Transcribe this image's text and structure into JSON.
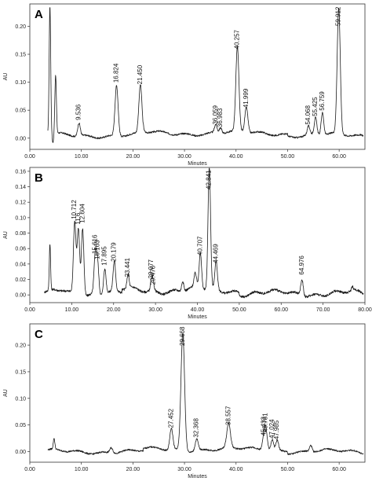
{
  "chart_data": [
    {
      "type": "line",
      "panel_label": "A",
      "xlabel": "Minutes",
      "ylabel": "AU",
      "xlim": [
        0,
        65
      ],
      "ylim": [
        -0.02,
        0.24
      ],
      "xticks": [
        "0.00",
        "10.00",
        "20.00",
        "30.00",
        "40.00",
        "50.00",
        "60.00"
      ],
      "xtick_values": [
        0,
        10,
        20,
        30,
        40,
        50,
        60
      ],
      "yticks": [
        "0.00",
        "0.05",
        "0.10",
        "0.15",
        "0.20"
      ],
      "ytick_values": [
        0,
        0.05,
        0.1,
        0.15,
        0.2
      ],
      "baseline": 0.005,
      "peaks": [
        {
          "x": 3.9,
          "y": 0.235,
          "w": 0.15
        },
        {
          "x": 4.5,
          "y": -0.01,
          "w": 0.15
        },
        {
          "x": 5.0,
          "y": 0.11,
          "w": 0.15
        },
        {
          "x": 9.536,
          "y": 0.028,
          "w": 0.25,
          "label": "9.536"
        },
        {
          "x": 16.824,
          "y": 0.095,
          "w": 0.3,
          "label": "16.824"
        },
        {
          "x": 21.45,
          "y": 0.092,
          "w": 0.3,
          "label": "21.450"
        },
        {
          "x": 36.059,
          "y": 0.02,
          "w": 0.25,
          "label": "36.059"
        },
        {
          "x": 36.983,
          "y": 0.015,
          "w": 0.25,
          "label": "36.983"
        },
        {
          "x": 40.257,
          "y": 0.155,
          "w": 0.3,
          "label": "40.257"
        },
        {
          "x": 41.999,
          "y": 0.05,
          "w": 0.3,
          "label": "41.999"
        },
        {
          "x": 54.068,
          "y": 0.02,
          "w": 0.25,
          "label": "54.068"
        },
        {
          "x": 55.425,
          "y": 0.035,
          "w": 0.25,
          "label": "55.425"
        },
        {
          "x": 56.759,
          "y": 0.045,
          "w": 0.25,
          "label": "56.759"
        },
        {
          "x": 59.912,
          "y": 0.23,
          "w": 0.3,
          "label": "59.912"
        }
      ]
    },
    {
      "type": "line",
      "panel_label": "B",
      "xlabel": "Minutes",
      "ylabel": "AU",
      "xlim": [
        0,
        80
      ],
      "ylim": [
        -0.01,
        0.165
      ],
      "xticks": [
        "0.00",
        "10.00",
        "20.00",
        "30.00",
        "40.00",
        "50.00",
        "60.00",
        "70.00",
        "80.00"
      ],
      "xtick_values": [
        0,
        10,
        20,
        30,
        40,
        50,
        60,
        70,
        80
      ],
      "yticks": [
        "0.00",
        "0.02",
        "0.04",
        "0.06",
        "0.08",
        "0.10",
        "0.12",
        "0.14",
        "0.16"
      ],
      "ytick_values": [
        0,
        0.02,
        0.04,
        0.06,
        0.08,
        0.1,
        0.12,
        0.14,
        0.16
      ],
      "baseline": 0.002,
      "peaks": [
        {
          "x": 4.8,
          "y": 0.062,
          "w": 0.15
        },
        {
          "x": 8.0,
          "y": 0.006,
          "w": 1.2
        },
        {
          "x": 10.712,
          "y": 0.095,
          "w": 0.3,
          "label": "10.712"
        },
        {
          "x": 11.6,
          "y": 0.088,
          "w": 0.3,
          "label": "11.6"
        },
        {
          "x": 12.604,
          "y": 0.09,
          "w": 0.3,
          "label": "12.604"
        },
        {
          "x": 15.616,
          "y": 0.05,
          "w": 0.3,
          "label": "15.616"
        },
        {
          "x": 16.163,
          "y": 0.043,
          "w": 0.3,
          "label": "16.163"
        },
        {
          "x": 17.895,
          "y": 0.035,
          "w": 0.3,
          "label": "17.895"
        },
        {
          "x": 20.179,
          "y": 0.04,
          "w": 0.3,
          "label": "20.179"
        },
        {
          "x": 23.441,
          "y": 0.02,
          "w": 0.25,
          "label": "23.441"
        },
        {
          "x": 29.077,
          "y": 0.018,
          "w": 0.25,
          "label": "29.077"
        },
        {
          "x": 29.476,
          "y": 0.01,
          "w": 0.25,
          "label": "29.476"
        },
        {
          "x": 36.5,
          "y": 0.015,
          "w": 0.25
        },
        {
          "x": 39.5,
          "y": 0.02,
          "w": 0.3
        },
        {
          "x": 40.707,
          "y": 0.048,
          "w": 0.3,
          "label": "40.707"
        },
        {
          "x": 42.841,
          "y": 0.16,
          "w": 0.3,
          "label": "42.841"
        },
        {
          "x": 44.469,
          "y": 0.038,
          "w": 0.3,
          "label": "44.469"
        },
        {
          "x": 64.976,
          "y": 0.023,
          "w": 0.3,
          "label": "64.976"
        },
        {
          "x": 77.0,
          "y": 0.007,
          "w": 0.2
        }
      ]
    },
    {
      "type": "line",
      "panel_label": "C",
      "xlabel": "Minutes",
      "ylabel": "AU",
      "xlim": [
        0,
        65
      ],
      "ylim": [
        -0.02,
        0.24
      ],
      "xticks": [
        "0.00",
        "10.00",
        "20.00",
        "30.00",
        "40.00",
        "50.00",
        "60.00"
      ],
      "xtick_values": [
        0,
        10,
        20,
        30,
        40,
        50,
        60
      ],
      "yticks": [
        "0.00",
        "0.05",
        "0.10",
        "0.15",
        "0.20"
      ],
      "ytick_values": [
        0,
        0.05,
        0.1,
        0.15,
        0.2
      ],
      "baseline": 0.0,
      "peaks": [
        {
          "x": 4.7,
          "y": 0.02,
          "w": 0.15
        },
        {
          "x": 15.8,
          "y": 0.01,
          "w": 0.3
        },
        {
          "x": 27.452,
          "y": 0.04,
          "w": 0.3,
          "label": "27.452"
        },
        {
          "x": 29.668,
          "y": 0.22,
          "w": 0.35,
          "label": "29.668"
        },
        {
          "x": 32.368,
          "y": 0.022,
          "w": 0.3,
          "label": "32.368"
        },
        {
          "x": 38.557,
          "y": 0.045,
          "w": 0.35,
          "label": "38.557"
        },
        {
          "x": 45.433,
          "y": 0.025,
          "w": 0.3,
          "label": "45.433"
        },
        {
          "x": 45.781,
          "y": 0.032,
          "w": 0.3,
          "label": "45.781"
        },
        {
          "x": 47.024,
          "y": 0.02,
          "w": 0.25,
          "label": "47.024"
        },
        {
          "x": 47.985,
          "y": 0.018,
          "w": 0.25,
          "label": "47.985"
        },
        {
          "x": 54.5,
          "y": 0.012,
          "w": 0.25
        }
      ]
    }
  ]
}
